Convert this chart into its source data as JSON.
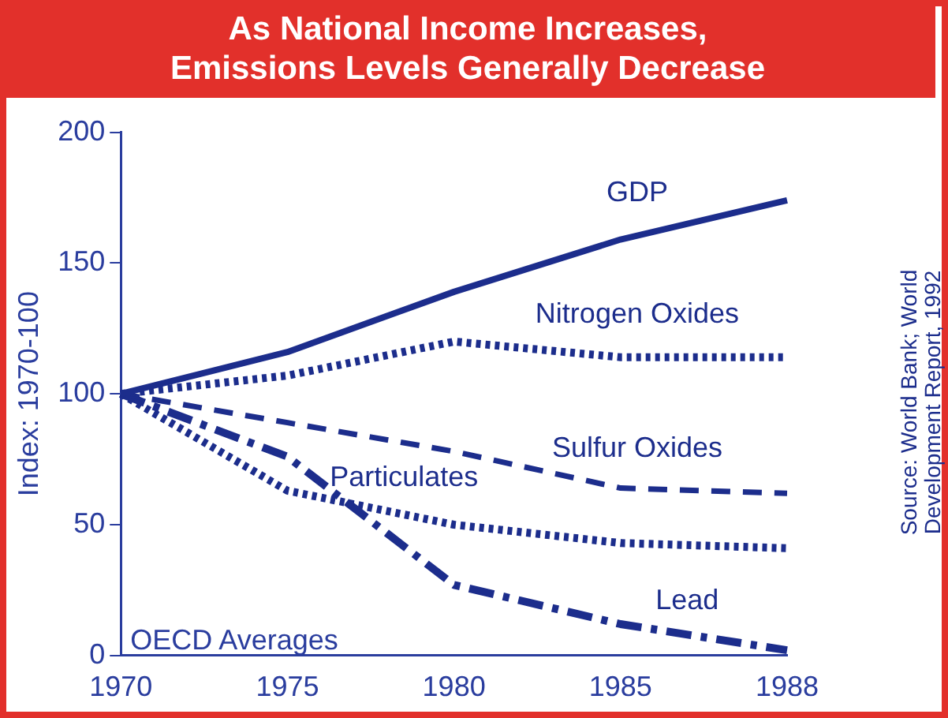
{
  "chart_data": {
    "type": "line",
    "title": "As National Income Increases,\nEmissions Levels Generally Decrease",
    "ylabel": "Index: 1970-100",
    "categories": [
      "1970",
      "1975",
      "1980",
      "1985",
      "1988"
    ],
    "series": [
      {
        "name": "GDP",
        "color": "#1c2d8c",
        "values": [
          100,
          116,
          139,
          159,
          174
        ],
        "line_style": "solid"
      },
      {
        "name": "Nitrogen Oxides",
        "color": "#1c2d8c",
        "values": [
          100,
          107,
          120,
          114,
          114
        ],
        "line_style": "dotted"
      },
      {
        "name": "Sulfur Oxides",
        "color": "#1c2d8c",
        "values": [
          100,
          89,
          78,
          64,
          62
        ],
        "line_style": "dashed"
      },
      {
        "name": "Particulates",
        "color": "#1c2d8c",
        "values": [
          100,
          63,
          50,
          43,
          41
        ],
        "line_style": "dotted"
      },
      {
        "name": "Lead",
        "color": "#1c2d8c",
        "values": [
          100,
          76,
          27,
          12,
          2
        ],
        "line_style": "dashdot"
      }
    ],
    "ylim": [
      0,
      200
    ],
    "yticks": [
      0,
      50,
      100,
      150,
      200
    ],
    "grid": false,
    "legend": false,
    "marker": "none",
    "annotations": [
      "OECD Averages",
      "Source: World Bank; World Development Report, 1992"
    ]
  }
}
